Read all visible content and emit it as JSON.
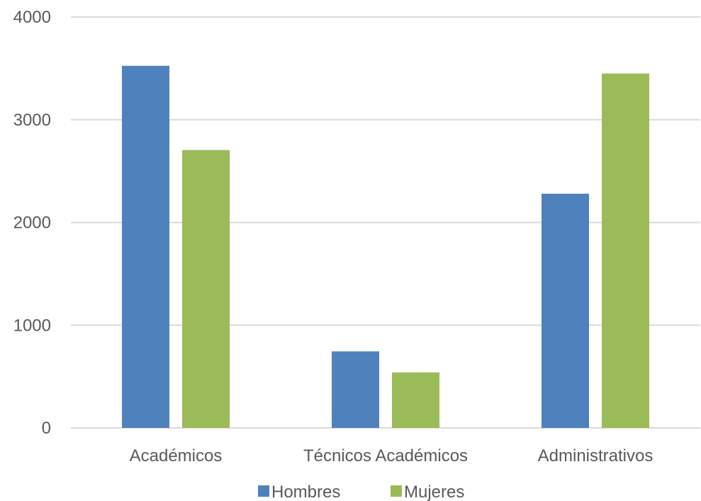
{
  "chart_data": {
    "type": "bar",
    "categories": [
      "Académicos",
      "Técnicos Académicos",
      "Administrativos"
    ],
    "series": [
      {
        "name": "Hombres",
        "color": "#4F81BD",
        "values": [
          3525,
          745,
          2280
        ]
      },
      {
        "name": "Mujeres",
        "color": "#9BBB59",
        "values": [
          2705,
          540,
          3450
        ]
      }
    ],
    "yticks": [
      "0",
      "1000",
      "2000",
      "3000",
      "4000"
    ],
    "ylim": [
      0,
      4000
    ],
    "grid": true,
    "legend_position": "bottom",
    "gridline_color": "#D9D9D9"
  }
}
